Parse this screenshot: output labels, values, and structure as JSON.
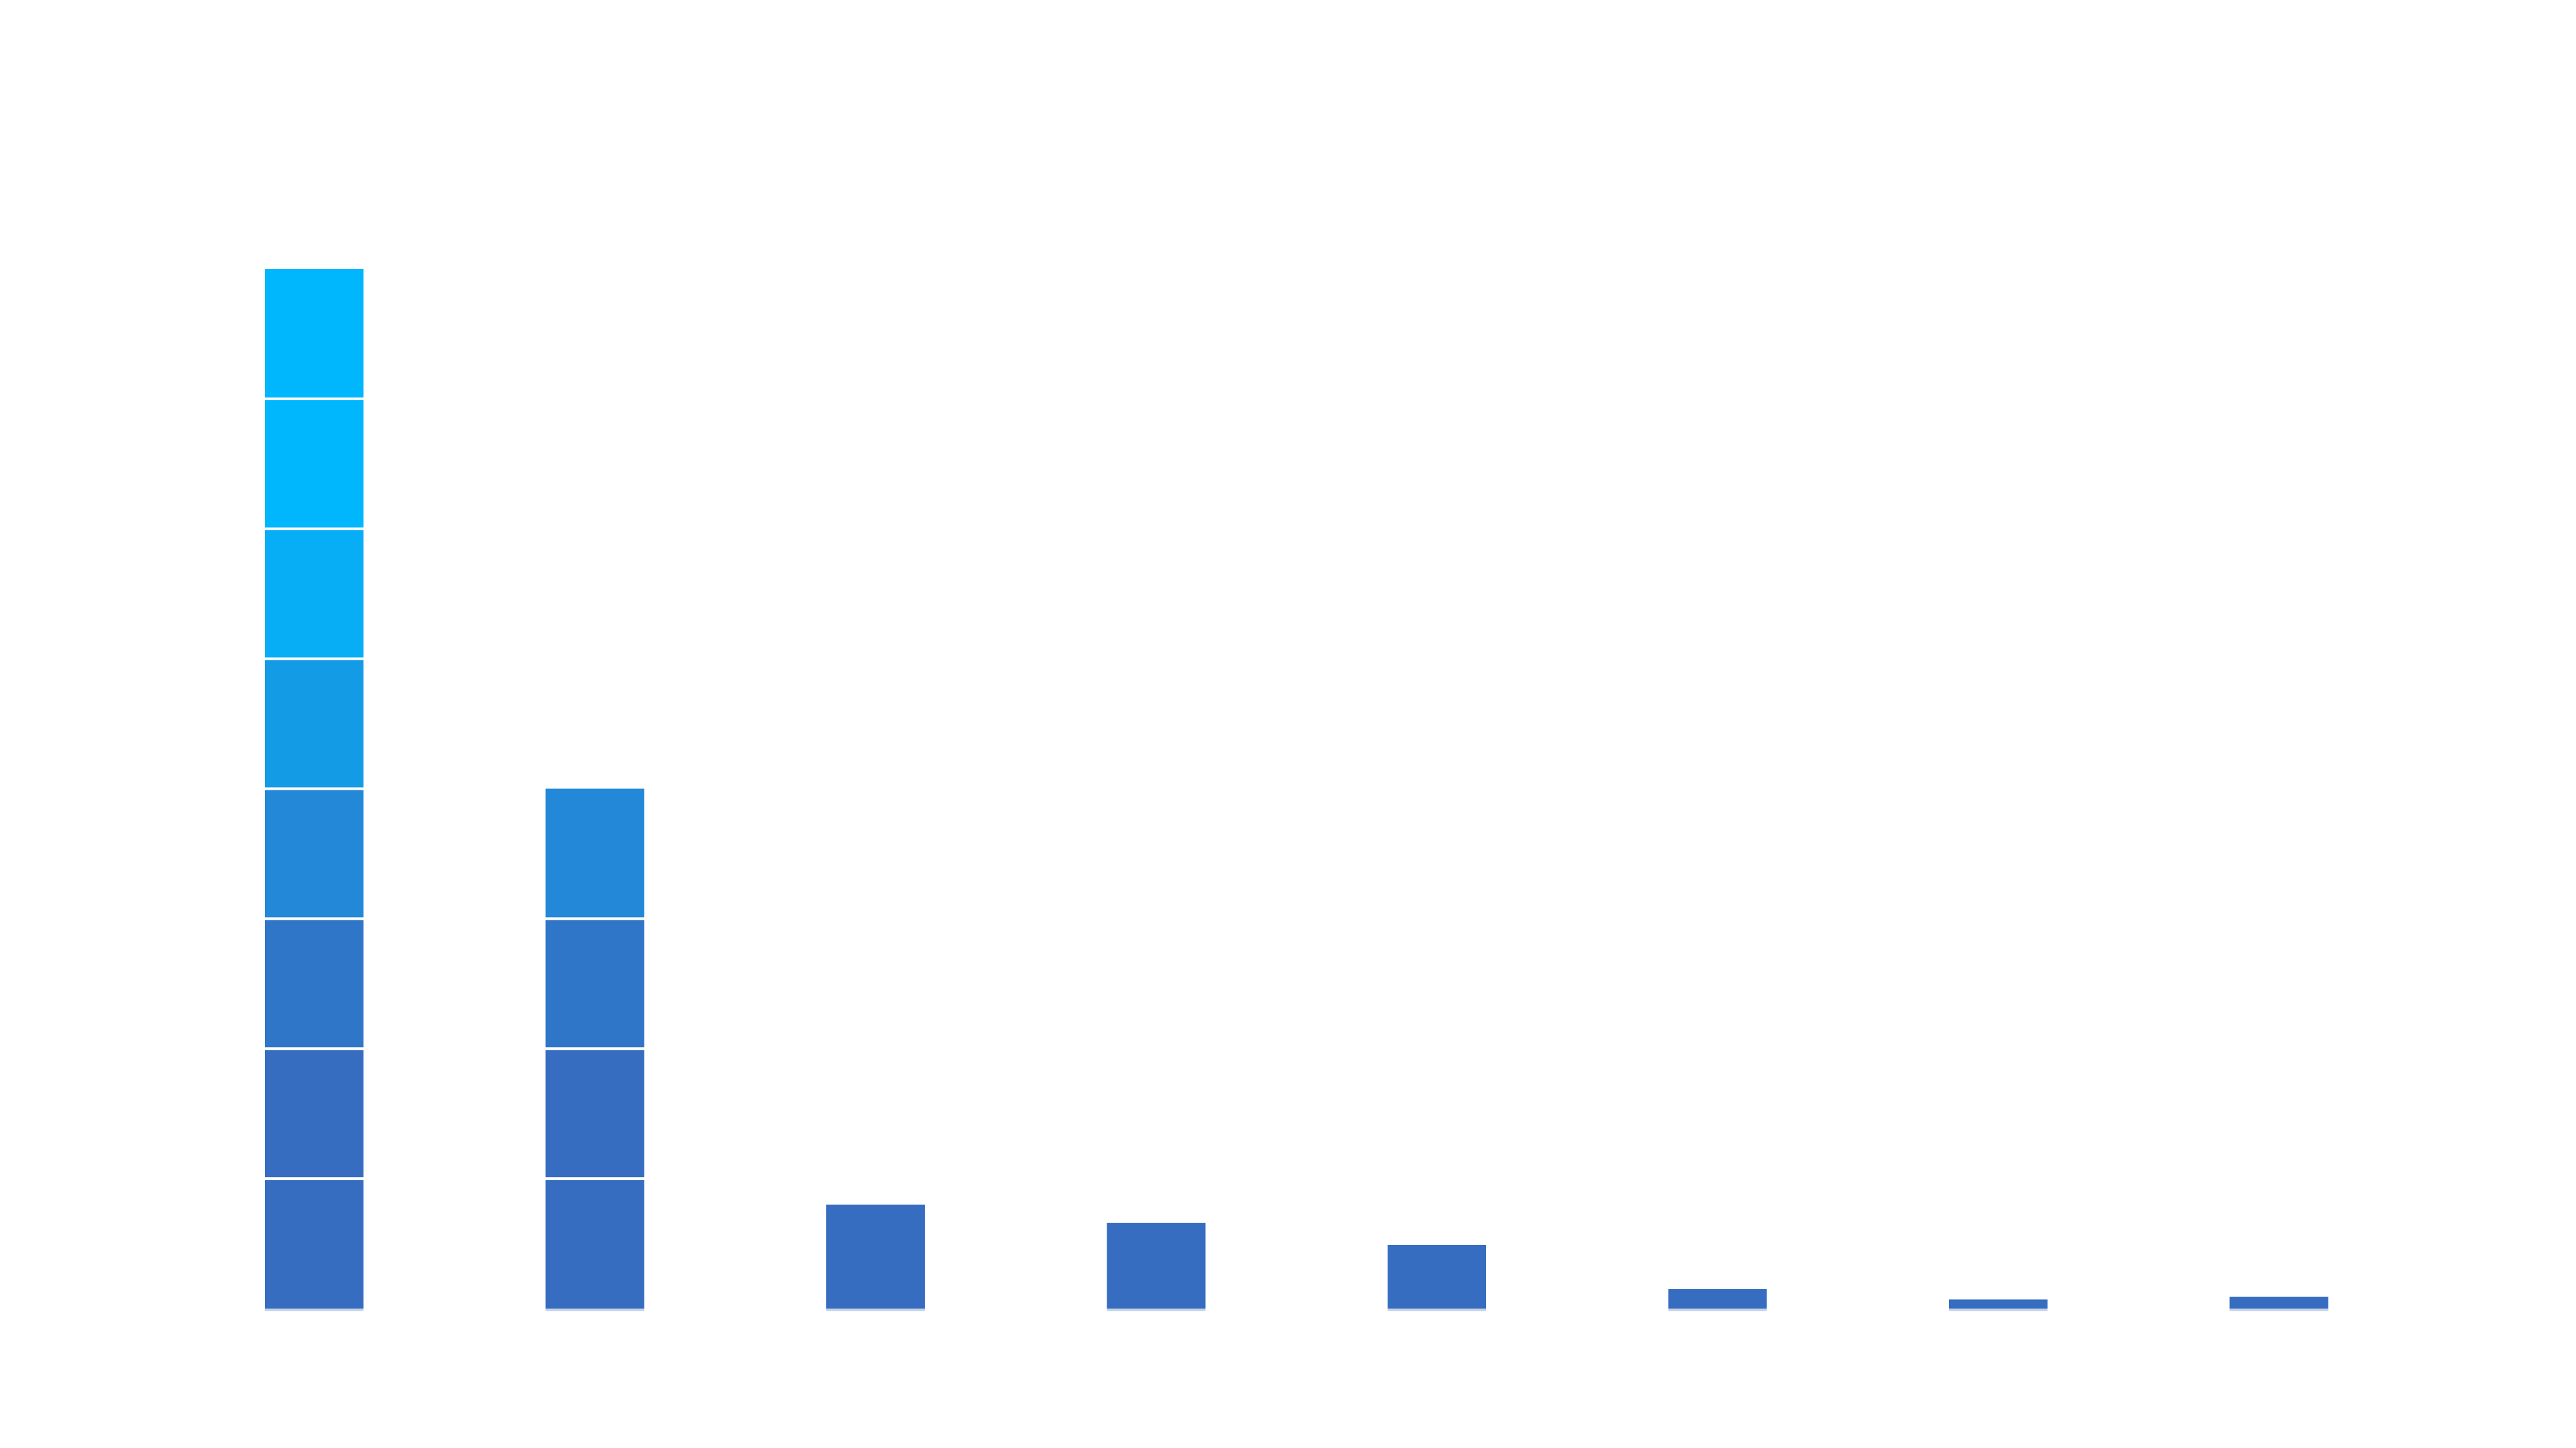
{
  "chart_data": {
    "type": "bar",
    "title": "",
    "xlabel": "",
    "ylabel": "",
    "categories": [
      "",
      "",
      "",
      "",
      "",
      "",
      "",
      ""
    ],
    "values": [
      8.0,
      4.0,
      0.8,
      0.66,
      0.49,
      0.15,
      0.07,
      0.09
    ],
    "ylim": [
      0,
      8
    ],
    "segment_unit": 1,
    "grid": false,
    "legend": "none",
    "colors": {
      "bottom": "#366dc0",
      "top": "#00b6fd",
      "segment_divider": "#ffffff",
      "baseline": "#c9d4e8"
    }
  }
}
